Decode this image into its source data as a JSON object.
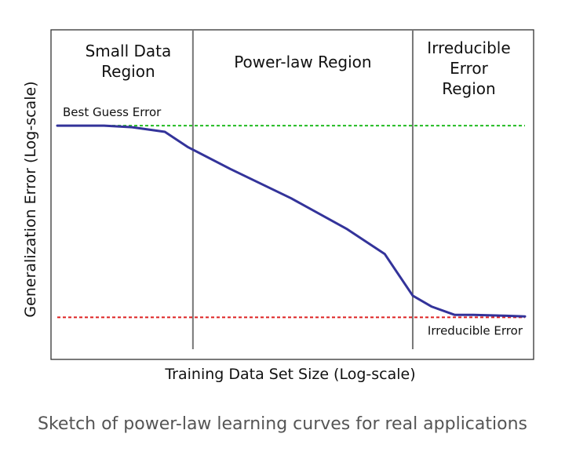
{
  "caption": "Sketch of power-law learning curves for real applications",
  "chart_data": {
    "type": "line",
    "title": "",
    "xlabel": "Training Data Set Size (Log-scale)",
    "ylabel": "Generalization Error (Log-scale)",
    "xlim": [
      0,
      100
    ],
    "ylim": [
      0,
      100
    ],
    "regions": [
      {
        "name": "small-data",
        "label_lines": [
          "Small Data",
          "Region"
        ],
        "x_start": 0,
        "x_end": 29
      },
      {
        "name": "power-law",
        "label_lines": [
          "Power-law Region"
        ],
        "x_start": 29,
        "x_end": 76
      },
      {
        "name": "irreducible",
        "label_lines": [
          "Irreducible",
          "Error",
          "Region"
        ],
        "x_start": 76,
        "x_end": 100
      }
    ],
    "reference_lines": [
      {
        "name": "best-guess",
        "label": "Best Guess Error",
        "y": 69,
        "color": "#22bb22",
        "style": "dashed"
      },
      {
        "name": "irreducible",
        "label": "Irreducible Error",
        "y": 7,
        "color": "#dd2222",
        "style": "dashed"
      }
    ],
    "series": [
      {
        "color": "#33339a",
        "x": [
          0,
          10,
          16,
          23,
          28,
          37,
          50,
          62,
          70,
          76,
          80,
          85,
          89,
          96,
          100
        ],
        "y": [
          69,
          69,
          68.5,
          67,
          62,
          55,
          45.5,
          35.5,
          27.5,
          14,
          10.5,
          7.8,
          7.8,
          7.5,
          7.3
        ]
      }
    ]
  }
}
